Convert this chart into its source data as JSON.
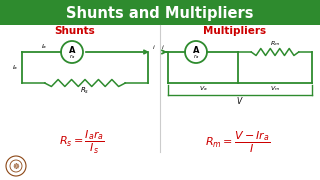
{
  "title": "Shunts and Multipliers",
  "title_bg": "#2e8b2e",
  "title_color": "white",
  "left_label": "Shunts",
  "right_label": "Multipliers",
  "label_color": "#cc0000",
  "circuit_color": "#2e8b2e",
  "formula_color": "#cc0000",
  "bg_color": "white",
  "formula_left": "$R_s = \\dfrac{I_a r_a}{I_s}$",
  "formula_right": "$R_m = \\dfrac{V - Ir_a}{I}$"
}
